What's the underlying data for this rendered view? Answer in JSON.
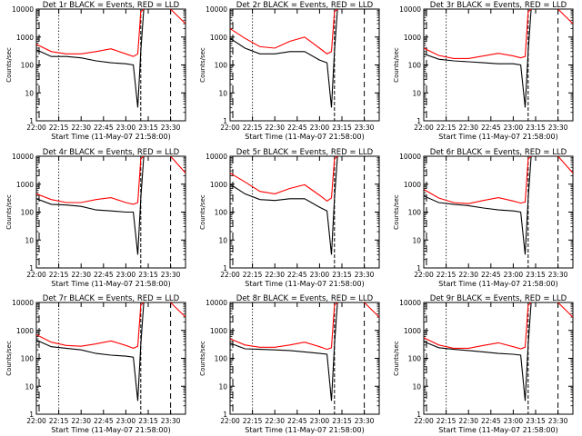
{
  "chart_data": [
    {
      "type": "line",
      "title": "Det 1r BLACK = Events, RED = LLD",
      "xlabel": "Start Time (11-May-07 21:58:00)",
      "ylabel": "Counts/sec",
      "scale": "log",
      "ylim": [
        1,
        10000
      ],
      "xlim": [
        "22:00",
        "23:40"
      ],
      "x_ticks": [
        "22:00",
        "22:15",
        "22:30",
        "22:45",
        "23:00",
        "23:15",
        "23:30"
      ],
      "y_ticks": [
        "1",
        "10",
        "100",
        "1000",
        "10000"
      ],
      "x": [
        "22:00",
        "22:10",
        "22:20",
        "22:30",
        "22:40",
        "22:50",
        "23:00",
        "23:05",
        "23:08",
        "23:10",
        "23:12",
        "23:15",
        "23:25",
        "23:30",
        "23:40"
      ],
      "series": [
        {
          "name": "RED = LLD",
          "color": "#ff0000",
          "values": [
            550,
            300,
            250,
            250,
            300,
            380,
            250,
            200,
            250,
            8000,
            10000,
            null,
            null,
            10000,
            3000
          ]
        },
        {
          "name": "BLACK = Events",
          "color": "#000000",
          "values": [
            350,
            200,
            200,
            180,
            140,
            120,
            110,
            100,
            3,
            300,
            10000,
            null,
            null,
            null,
            null
          ]
        }
      ]
    },
    {
      "type": "line",
      "title": "Det 2r BLACK = Events, RED = LLD",
      "xlabel": "Start Time (11-May-07 21:58:00)",
      "ylabel": "Counts/sec",
      "scale": "log",
      "ylim": [
        1,
        10000
      ],
      "xlim": [
        "22:00",
        "23:40"
      ],
      "x_ticks": [
        "22:00",
        "22:15",
        "22:30",
        "22:45",
        "23:00",
        "23:15",
        "23:30"
      ],
      "y_ticks": [
        "1",
        "10",
        "100",
        "1000",
        "10000"
      ],
      "x": [
        "22:00",
        "22:10",
        "22:20",
        "22:30",
        "22:40",
        "22:50",
        "23:00",
        "23:05",
        "23:08",
        "23:10",
        "23:12",
        "23:15",
        "23:25",
        "23:30",
        "23:40"
      ],
      "series": [
        {
          "name": "RED = LLD",
          "color": "#ff0000",
          "values": [
            2000,
            900,
            450,
            400,
            700,
            1000,
            400,
            250,
            300,
            8000,
            10000,
            null,
            null,
            null,
            null
          ]
        },
        {
          "name": "BLACK = Events",
          "color": "#000000",
          "values": [
            900,
            400,
            250,
            250,
            300,
            300,
            150,
            120,
            3,
            300,
            10000,
            null,
            null,
            null,
            null
          ]
        }
      ]
    },
    {
      "type": "line",
      "title": "Det 3r BLACK = Events, RED = LLD",
      "xlabel": "Start Time (11-May-07 21:58:00)",
      "ylabel": "Counts/sec",
      "scale": "log",
      "ylim": [
        1,
        10000
      ],
      "xlim": [
        "22:00",
        "23:40"
      ],
      "x_ticks": [
        "22:00",
        "22:15",
        "22:30",
        "22:45",
        "23:00",
        "23:15",
        "23:30"
      ],
      "y_ticks": [
        "1",
        "10",
        "100",
        "1000",
        "10000"
      ],
      "x": [
        "22:00",
        "22:10",
        "22:20",
        "22:30",
        "22:40",
        "22:50",
        "23:00",
        "23:05",
        "23:08",
        "23:10",
        "23:12",
        "23:15",
        "23:25",
        "23:30",
        "23:40"
      ],
      "series": [
        {
          "name": "RED = LLD",
          "color": "#ff0000",
          "values": [
            400,
            220,
            170,
            170,
            210,
            260,
            210,
            180,
            200,
            8000,
            10000,
            null,
            null,
            10000,
            3000
          ]
        },
        {
          "name": "BLACK = Events",
          "color": "#000000",
          "values": [
            250,
            160,
            140,
            130,
            120,
            110,
            110,
            100,
            3,
            300,
            10000,
            null,
            null,
            null,
            null
          ]
        }
      ]
    },
    {
      "type": "line",
      "title": "Det 4r BLACK = Events, RED = LLD",
      "xlabel": "Start Time (11-May-07 21:58:00)",
      "ylabel": "Counts/sec",
      "scale": "log",
      "ylim": [
        1,
        10000
      ],
      "xlim": [
        "22:00",
        "23:40"
      ],
      "x_ticks": [
        "22:00",
        "22:15",
        "22:30",
        "22:45",
        "23:00",
        "23:15",
        "23:30"
      ],
      "y_ticks": [
        "1",
        "10",
        "100",
        "1000",
        "10000"
      ],
      "x": [
        "22:00",
        "22:10",
        "22:20",
        "22:30",
        "22:40",
        "22:50",
        "23:00",
        "23:05",
        "23:08",
        "23:10",
        "23:12",
        "23:15",
        "23:25",
        "23:30",
        "23:40"
      ],
      "series": [
        {
          "name": "RED = LLD",
          "color": "#ff0000",
          "values": [
            450,
            280,
            220,
            220,
            280,
            330,
            220,
            190,
            220,
            8000,
            10000,
            null,
            null,
            10000,
            2500
          ]
        },
        {
          "name": "BLACK = Events",
          "color": "#000000",
          "values": [
            300,
            190,
            180,
            160,
            120,
            110,
            100,
            100,
            3,
            300,
            10000,
            null,
            null,
            null,
            null
          ]
        }
      ]
    },
    {
      "type": "line",
      "title": "Det 5r BLACK = Events, RED = LLD",
      "xlabel": "Start Time (11-May-07 21:58:00)",
      "ylabel": "Counts/sec",
      "scale": "log",
      "ylim": [
        1,
        10000
      ],
      "xlim": [
        "22:00",
        "23:40"
      ],
      "x_ticks": [
        "22:00",
        "22:15",
        "22:30",
        "22:45",
        "23:00",
        "23:15",
        "23:30"
      ],
      "y_ticks": [
        "1",
        "10",
        "100",
        "1000",
        "10000"
      ],
      "x": [
        "22:00",
        "22:10",
        "22:20",
        "22:30",
        "22:40",
        "22:50",
        "23:00",
        "23:05",
        "23:08",
        "23:10",
        "23:12",
        "23:15",
        "23:25",
        "23:30",
        "23:40"
      ],
      "series": [
        {
          "name": "RED = LLD",
          "color": "#ff0000",
          "values": [
            2500,
            1200,
            550,
            450,
            700,
            950,
            400,
            250,
            320,
            8000,
            10000,
            null,
            null,
            null,
            null
          ]
        },
        {
          "name": "BLACK = Events",
          "color": "#000000",
          "values": [
            1000,
            450,
            280,
            260,
            300,
            300,
            150,
            110,
            3,
            300,
            10000,
            null,
            null,
            null,
            null
          ]
        }
      ]
    },
    {
      "type": "line",
      "title": "Det 6r BLACK = Events, RED = LLD",
      "xlabel": "Start Time (11-May-07 21:58:00)",
      "ylabel": "Counts/sec",
      "scale": "log",
      "ylim": [
        1,
        10000
      ],
      "xlim": [
        "22:00",
        "23:40"
      ],
      "x_ticks": [
        "22:00",
        "22:15",
        "22:30",
        "22:45",
        "23:00",
        "23:15",
        "23:30"
      ],
      "y_ticks": [
        "1",
        "10",
        "100",
        "1000",
        "10000"
      ],
      "x": [
        "22:00",
        "22:10",
        "22:20",
        "22:30",
        "22:40",
        "22:50",
        "23:00",
        "23:05",
        "23:08",
        "23:10",
        "23:12",
        "23:15",
        "23:25",
        "23:30",
        "23:40"
      ],
      "series": [
        {
          "name": "RED = LLD",
          "color": "#ff0000",
          "values": [
            650,
            320,
            220,
            200,
            260,
            330,
            250,
            210,
            230,
            8000,
            10000,
            null,
            null,
            10000,
            2500
          ]
        },
        {
          "name": "BLACK = Events",
          "color": "#000000",
          "values": [
            380,
            220,
            190,
            170,
            140,
            120,
            110,
            100,
            3,
            300,
            10000,
            null,
            null,
            null,
            null
          ]
        }
      ]
    },
    {
      "type": "line",
      "title": "Det 7r BLACK = Events, RED = LLD",
      "xlabel": "Start Time (11-May-07 21:58:00)",
      "ylabel": "Counts/sec",
      "scale": "log",
      "ylim": [
        1,
        10000
      ],
      "xlim": [
        "22:00",
        "23:40"
      ],
      "x_ticks": [
        "22:00",
        "22:15",
        "22:30",
        "22:45",
        "23:00",
        "23:15",
        "23:30"
      ],
      "y_ticks": [
        "1",
        "10",
        "100",
        "1000",
        "10000"
      ],
      "x": [
        "22:00",
        "22:10",
        "22:20",
        "22:30",
        "22:40",
        "22:50",
        "23:00",
        "23:05",
        "23:08",
        "23:10",
        "23:12",
        "23:15",
        "23:25",
        "23:30",
        "23:40"
      ],
      "series": [
        {
          "name": "RED = LLD",
          "color": "#ff0000",
          "values": [
            700,
            380,
            290,
            270,
            330,
            420,
            290,
            230,
            270,
            8000,
            10000,
            null,
            null,
            10000,
            3000
          ]
        },
        {
          "name": "BLACK = Events",
          "color": "#000000",
          "values": [
            450,
            260,
            230,
            200,
            150,
            130,
            120,
            110,
            3,
            300,
            10000,
            null,
            null,
            null,
            null
          ]
        }
      ]
    },
    {
      "type": "line",
      "title": "Det 8r BLACK = Events, RED = LLD",
      "xlabel": "Start Time (11-May-07 21:58:00)",
      "ylabel": "Counts/sec",
      "scale": "log",
      "ylim": [
        1,
        10000
      ],
      "xlim": [
        "22:00",
        "23:40"
      ],
      "x_ticks": [
        "22:00",
        "22:15",
        "22:30",
        "22:45",
        "23:00",
        "23:15",
        "23:30"
      ],
      "y_ticks": [
        "1",
        "10",
        "100",
        "1000",
        "10000"
      ],
      "x": [
        "22:00",
        "22:10",
        "22:20",
        "22:30",
        "22:40",
        "22:50",
        "23:00",
        "23:05",
        "23:08",
        "23:10",
        "23:12",
        "23:15",
        "23:25",
        "23:30",
        "23:40"
      ],
      "series": [
        {
          "name": "RED = LLD",
          "color": "#ff0000",
          "values": [
            500,
            300,
            250,
            250,
            300,
            380,
            260,
            210,
            240,
            8000,
            10000,
            null,
            null,
            10000,
            3000
          ]
        },
        {
          "name": "BLACK = Events",
          "color": "#000000",
          "values": [
            350,
            220,
            210,
            200,
            190,
            170,
            150,
            140,
            3,
            300,
            10000,
            null,
            null,
            null,
            null
          ]
        }
      ]
    },
    {
      "type": "line",
      "title": "Det 9r BLACK = Events, RED = LLD",
      "xlabel": "Start Time (11-May-07 21:58:00)",
      "ylabel": "Counts/sec",
      "scale": "log",
      "ylim": [
        1,
        10000
      ],
      "xlim": [
        "22:00",
        "23:40"
      ],
      "x_ticks": [
        "22:00",
        "22:15",
        "22:30",
        "22:45",
        "23:00",
        "23:15",
        "23:30"
      ],
      "y_ticks": [
        "1",
        "10",
        "100",
        "1000",
        "10000"
      ],
      "x": [
        "22:00",
        "22:10",
        "22:20",
        "22:30",
        "22:40",
        "22:50",
        "23:00",
        "23:05",
        "23:08",
        "23:10",
        "23:12",
        "23:15",
        "23:25",
        "23:30",
        "23:40"
      ],
      "series": [
        {
          "name": "RED = LLD",
          "color": "#ff0000",
          "values": [
            550,
            300,
            230,
            230,
            290,
            360,
            260,
            220,
            250,
            8000,
            10000,
            null,
            null,
            10000,
            3000
          ]
        },
        {
          "name": "BLACK = Events",
          "color": "#000000",
          "values": [
            400,
            240,
            210,
            190,
            170,
            150,
            140,
            130,
            3,
            300,
            10000,
            null,
            null,
            null,
            null
          ]
        }
      ]
    }
  ]
}
